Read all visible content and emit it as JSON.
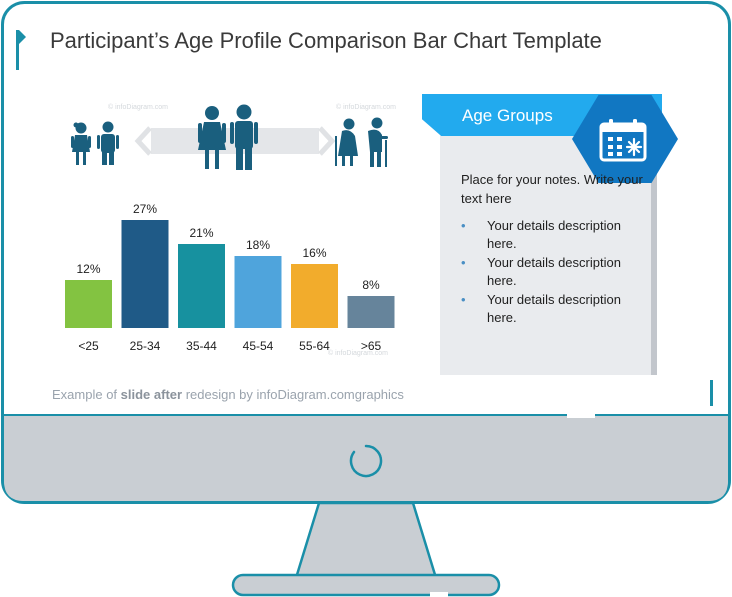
{
  "slide": {
    "title": "Participant’s Age Profile Comparison Bar Chart Template",
    "footer": {
      "prefix": "Example of ",
      "bold": "slide after",
      "suffix": " redesign by infoDiagram.com",
      "tail": "graphics"
    },
    "watermark": "© infoDiagram.com"
  },
  "notes": {
    "header": "Age Groups",
    "intro": "Place for your notes. Write your text here",
    "items": [
      "Your details description here.",
      "Your details description here.",
      "Your details description here."
    ],
    "bullet": "•"
  },
  "icons": {
    "children": "children-icon",
    "adults": "adults-icon",
    "seniors": "seniors-icon",
    "calendar": "calendar-icon",
    "power": "power-icon"
  },
  "colors": {
    "frame": "#1a8fa8",
    "screen_bottom": "#c9ced3",
    "figures": "#1a5f7e",
    "header": "#22aaee",
    "hex": "#1177c2"
  },
  "chart_data": {
    "type": "bar",
    "categories": [
      "<25",
      "25-34",
      "35-44",
      "45-54",
      "55-64",
      ">65"
    ],
    "values": [
      12,
      27,
      21,
      18,
      16,
      8
    ],
    "labels": [
      "12%",
      "27%",
      "21%",
      "18%",
      "16%",
      "8%"
    ],
    "colors": [
      "#83c341",
      "#1f5a87",
      "#17919f",
      "#4fa4dc",
      "#f2ac2c",
      "#66849b"
    ],
    "title": "",
    "xlabel": "",
    "ylabel": "",
    "ylim": [
      0,
      30
    ],
    "grid": false,
    "legend": "none"
  }
}
